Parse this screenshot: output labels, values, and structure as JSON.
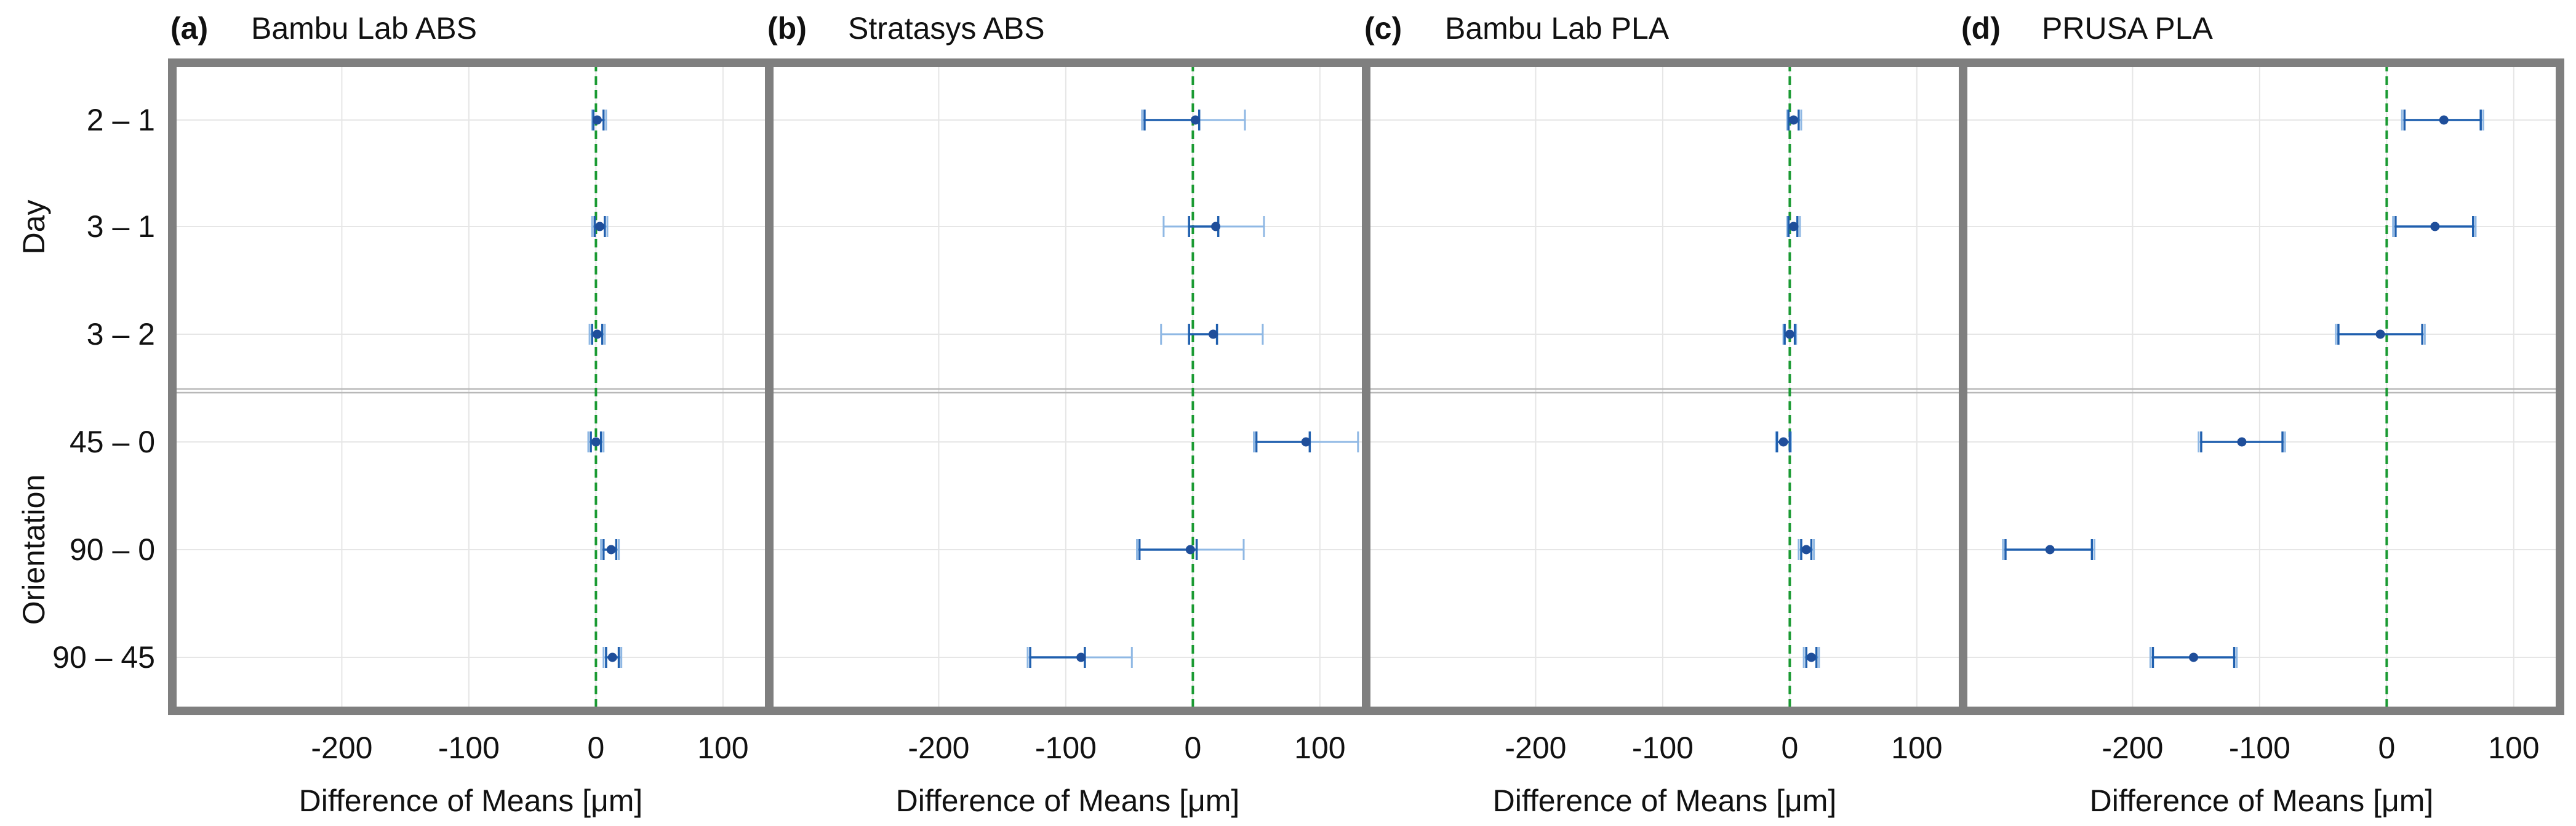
{
  "figure": {
    "row_labels": [
      "2 – 1",
      "3 – 1",
      "3 – 2",
      "45 – 0",
      "90 – 0",
      "90 – 45"
    ],
    "group_labels": [
      {
        "label": "Day",
        "rows": [
          0,
          2
        ]
      },
      {
        "label": "Orientation",
        "rows": [
          3,
          5
        ]
      }
    ],
    "xlabel": "Difference of Means [μm]",
    "xlim": [
      -330,
      133
    ],
    "xticks": [
      -200,
      -100,
      0,
      100
    ],
    "xtick_labels": [
      "-200",
      "-100",
      "0",
      "100"
    ],
    "colors": {
      "point": "#1f4e9a",
      "error_bar_inner": "#1f5fae",
      "error_bar_outer": "#8fb8e4",
      "zero_line": "#1a9a32",
      "frame": "#7f7f7f",
      "grid": "#e6e6e6",
      "separator": "#b8b8b8"
    }
  },
  "chart_data": [
    {
      "type": "interval",
      "panel_label": "(a)",
      "title": "Bambu Lab ABS",
      "categories": [
        "2 – 1",
        "3 – 1",
        "3 – 2",
        "45 – 0",
        "90 – 0",
        "90 – 45"
      ],
      "estimate": [
        1,
        3,
        1,
        0,
        12,
        13
      ],
      "outer_ci": [
        [
          -3,
          8
        ],
        [
          -3,
          9
        ],
        [
          -5,
          7
        ],
        [
          -6,
          6
        ],
        [
          4,
          18
        ],
        [
          6,
          20
        ]
      ],
      "inner_ci": [
        [
          -2,
          6
        ],
        [
          -1,
          7
        ],
        [
          -3,
          5
        ],
        [
          -4,
          4
        ],
        [
          6,
          16
        ],
        [
          8,
          18
        ]
      ],
      "xlabel": "Difference of Means [μm]"
    },
    {
      "type": "interval",
      "panel_label": "(b)",
      "title": "Stratasys ABS",
      "categories": [
        "2 – 1",
        "3 – 1",
        "3 – 2",
        "45 – 0",
        "90 – 0",
        "90 – 45"
      ],
      "estimate": [
        2,
        18,
        16,
        89,
        -2,
        -88
      ],
      "outer_ci": [
        [
          -40,
          41
        ],
        [
          -23,
          56
        ],
        [
          -25,
          55
        ],
        [
          48,
          130
        ],
        [
          -44,
          40
        ],
        [
          -130,
          -48
        ]
      ],
      "inner_ci": [
        [
          -38,
          5
        ],
        [
          -3,
          20
        ],
        [
          -3,
          19
        ],
        [
          50,
          92
        ],
        [
          -42,
          3
        ],
        [
          -128,
          -85
        ]
      ],
      "xlabel": "Difference of Means [μm]"
    },
    {
      "type": "interval",
      "panel_label": "(c)",
      "title": "Bambu Lab PLA",
      "categories": [
        "2 – 1",
        "3 – 1",
        "3 – 2",
        "45 – 0",
        "90 – 0",
        "90 – 45"
      ],
      "estimate": [
        3,
        3,
        0,
        -5,
        13,
        17
      ],
      "outer_ci": [
        [
          -2,
          9
        ],
        [
          -2,
          8
        ],
        [
          -5,
          5
        ],
        [
          -11,
          1
        ],
        [
          7,
          19
        ],
        [
          11,
          23
        ]
      ],
      "inner_ci": [
        [
          -1,
          7
        ],
        [
          -1,
          6
        ],
        [
          -4,
          4
        ],
        [
          -10,
          0
        ],
        [
          9,
          17
        ],
        [
          13,
          21
        ]
      ],
      "xlabel": "Difference of Means [μm]"
    },
    {
      "type": "interval",
      "panel_label": "(d)",
      "title": "PRUSA PLA",
      "categories": [
        "2 – 1",
        "3 – 1",
        "3 – 2",
        "45 – 0",
        "90 – 0",
        "90 – 45"
      ],
      "estimate": [
        45,
        38,
        -5,
        -114,
        -265,
        -152
      ],
      "outer_ci": [
        [
          12,
          76
        ],
        [
          5,
          70
        ],
        [
          -40,
          30
        ],
        [
          -148,
          -80
        ],
        [
          -302,
          -230
        ],
        [
          -186,
          -118
        ]
      ],
      "inner_ci": [
        [
          14,
          74
        ],
        [
          7,
          68
        ],
        [
          -38,
          28
        ],
        [
          -146,
          -82
        ],
        [
          -300,
          -232
        ],
        [
          -184,
          -120
        ]
      ],
      "xlabel": "Difference of Means [μm]"
    }
  ]
}
